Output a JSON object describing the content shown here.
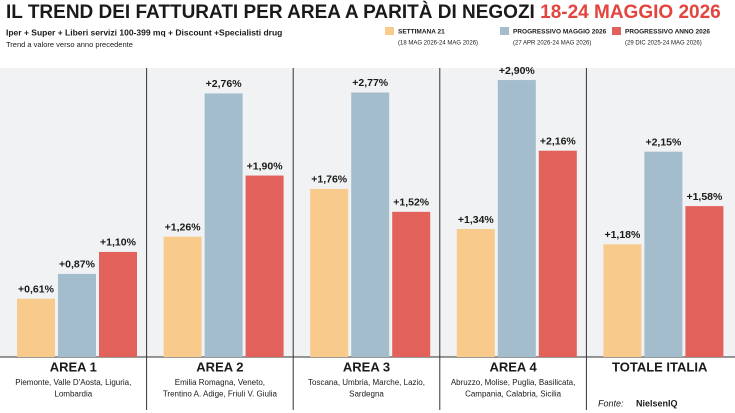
{
  "chart_data": {
    "type": "bar",
    "title": "IL TREND DEI FATTURATI PER AREA A PARITÀ DI NEGOZI",
    "title_date": "18-24 MAGGIO 2026",
    "subtitle": "Iper + Super + Liberi servizi 100-399 mq + Discount +Specialisti drug",
    "note": "Trend a valore verso anno precedente",
    "categories": [
      "AREA 1",
      "AREA 2",
      "AREA 3",
      "AREA 4",
      "TOTALE ITALIA"
    ],
    "descriptions": [
      [
        "Piemonte, Valle D'Aosta, Liguria,",
        "Lombardia"
      ],
      [
        "Emilia Romagna, Veneto,",
        "Trentino A. Adige, Friuli V. Giulia"
      ],
      [
        "Toscana, Umbria, Marche, Lazio,",
        "Sardegna"
      ],
      [
        "Abruzzo, Molise, Puglia, Basilicata,",
        "Campania, Calabria, Sicilia"
      ],
      []
    ],
    "series": [
      {
        "name": "SETTIMANA 21",
        "period": "(18 MAG 2026-24 MAG 2026)",
        "color": "#f8cb8c",
        "values": [
          0.61,
          1.26,
          1.76,
          1.34,
          1.18
        ],
        "value_labels": [
          "+0,61%",
          "+1,26%",
          "+1,76%",
          "+1,34%",
          "+1,18%"
        ]
      },
      {
        "name": "PROGRESSIVO MAGGIO 2026",
        "period": "(27 APR 2026-24 MAG 2026)",
        "color": "#a4bdcc",
        "values": [
          0.87,
          2.76,
          2.77,
          2.9,
          2.15
        ],
        "value_labels": [
          "+0,87%",
          "+2,76%",
          "+2,77%",
          "+2,90%",
          "+2,15%"
        ]
      },
      {
        "name": "PROGRESSIVO ANNO 2026",
        "period": "(29 DIC 2025-24 MAG 2026)",
        "color": "#e2625b",
        "values": [
          1.1,
          1.9,
          1.52,
          2.16,
          1.58
        ],
        "value_labels": [
          "+1,10%",
          "+1,90%",
          "+1,52%",
          "+2,16%",
          "+1,58%"
        ]
      }
    ],
    "source_label": "Fonte:",
    "source": "NielsenIQ"
  }
}
